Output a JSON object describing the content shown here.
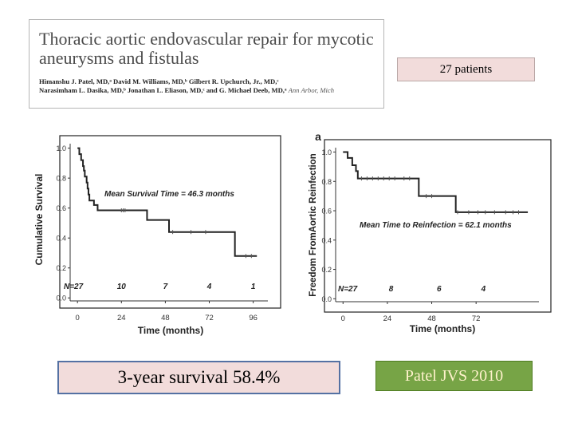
{
  "paper": {
    "title": "Thoracic aortic endovascular repair for mycotic aneurysms and fistulas",
    "authors_line1": "Himanshu J. Patel, MD,ᵃ David M. Williams, MD,ᵇ Gilbert R. Upchurch, Jr., MD,ᶜ",
    "authors_line2": "Narasimham L. Dasika, MD,ᵇ Jonathan L. Eliason, MD,ᶜ and G. Michael Deeb, MD,ᵃ",
    "affiliation": "Ann Arbor, Mich"
  },
  "labels": {
    "patients": "27 patients",
    "survival": "3-year survival 58.4%",
    "citation": "Patel JVS 2010"
  },
  "colors": {
    "pink_fill": "#f2dcdb",
    "blue_border": "#5471a3",
    "green_fill": "#77a446",
    "cream_text": "#fff2cc"
  },
  "chart_data": [
    {
      "type": "line",
      "step": true,
      "panel_label": "",
      "xlabel": "Time (months)",
      "ylabel": "Cumulative Survival",
      "xticks": [
        0,
        24,
        48,
        72,
        96
      ],
      "yticks": [
        0.0,
        0.2,
        0.4,
        0.6,
        0.8,
        1.0
      ],
      "ytick_labels": [
        "0.0",
        "0.2",
        "0.4",
        "0.6",
        "0.8",
        "1.0"
      ],
      "xlim": [
        -4,
        104
      ],
      "ylim": [
        -0.02,
        1.03
      ],
      "annotation": "Mean Survival Time = 46.3 months",
      "risk_label": "N=27",
      "at_risk": [
        {
          "time": 24,
          "n": "10"
        },
        {
          "time": 48,
          "n": "7"
        },
        {
          "time": 72,
          "n": "4"
        },
        {
          "time": 96,
          "n": "1"
        }
      ],
      "steps": [
        {
          "t": 0,
          "s": 1.0
        },
        {
          "t": 1,
          "s": 0.96
        },
        {
          "t": 2,
          "s": 0.92
        },
        {
          "t": 3,
          "s": 0.88
        },
        {
          "t": 3.5,
          "s": 0.85
        },
        {
          "t": 4,
          "s": 0.81
        },
        {
          "t": 5,
          "s": 0.77
        },
        {
          "t": 5.5,
          "s": 0.73
        },
        {
          "t": 6,
          "s": 0.69
        },
        {
          "t": 6.5,
          "s": 0.65
        },
        {
          "t": 9,
          "s": 0.62
        },
        {
          "t": 10,
          "s": 0.62
        },
        {
          "t": 11,
          "s": 0.585
        },
        {
          "t": 37,
          "s": 0.585
        },
        {
          "t": 38,
          "s": 0.52
        },
        {
          "t": 49,
          "s": 0.52
        },
        {
          "t": 50,
          "s": 0.44
        },
        {
          "t": 85,
          "s": 0.44
        },
        {
          "t": 86,
          "s": 0.28
        },
        {
          "t": 98,
          "s": 0.28
        }
      ],
      "censor_times": [
        24,
        25,
        26,
        52,
        62,
        70,
        92,
        95
      ]
    },
    {
      "type": "line",
      "step": true,
      "panel_label": "a",
      "xlabel": "Time (months)",
      "ylabel": "Freedom FromAortic Reinfection",
      "xticks": [
        0,
        24,
        48,
        72
      ],
      "yticks": [
        0.0,
        0.2,
        0.4,
        0.6,
        0.8,
        1.0
      ],
      "ytick_labels": [
        "0.0",
        "0.2",
        "0.4",
        "0.6",
        "0.8",
        "1.0"
      ],
      "xlim": [
        -4,
        106
      ],
      "ylim": [
        -0.02,
        1.03
      ],
      "annotation": "Mean Time to Reinfection = 62.1 months",
      "risk_label": "N=27",
      "at_risk": [
        {
          "time": 26,
          "n": "8"
        },
        {
          "time": 52,
          "n": "6"
        },
        {
          "time": 76,
          "n": "4"
        }
      ],
      "steps": [
        {
          "t": 0,
          "s": 1.0
        },
        {
          "t": 2,
          "s": 1.0
        },
        {
          "t": 2.5,
          "s": 0.96
        },
        {
          "t": 5,
          "s": 0.91
        },
        {
          "t": 7,
          "s": 0.87
        },
        {
          "t": 8,
          "s": 0.82
        },
        {
          "t": 40,
          "s": 0.82
        },
        {
          "t": 41,
          "s": 0.7
        },
        {
          "t": 60,
          "s": 0.7
        },
        {
          "t": 61,
          "s": 0.59
        },
        {
          "t": 100,
          "s": 0.59
        }
      ],
      "censor_times": [
        10,
        13,
        16,
        19,
        22,
        25,
        28,
        33,
        36,
        45,
        48,
        62,
        68,
        73,
        77,
        82,
        88,
        92,
        95
      ]
    }
  ]
}
